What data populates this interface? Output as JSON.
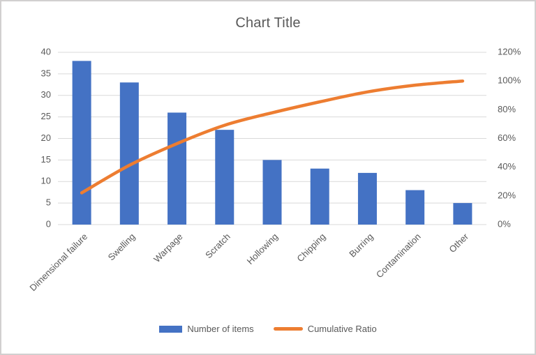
{
  "frame": {
    "background": "#ffffff",
    "border_color": "#d1cfcf",
    "text_color": "#595959"
  },
  "chart_data": {
    "type": "bar",
    "subtype": "pareto-combo",
    "title": "Chart Title",
    "categories": [
      "Dimensional failure",
      "Swelling",
      "Warpage",
      "Scratch",
      "Hollowing",
      "Chipping",
      "Burring",
      "Contamination",
      "Other"
    ],
    "series": [
      {
        "name": "Number of items",
        "type": "bar",
        "axis": "left",
        "color": "#4472C4",
        "values": [
          38,
          33,
          26,
          22,
          15,
          13,
          12,
          8,
          5
        ]
      },
      {
        "name": "Cumulative Ratio",
        "type": "line",
        "axis": "right",
        "color": "#ED7D31",
        "values_percent": [
          22.1,
          41.3,
          56.4,
          69.2,
          77.9,
          85.5,
          92.4,
          97.1,
          100
        ]
      }
    ],
    "left_axis": {
      "min": 0,
      "max": 40,
      "step": 5,
      "tick_labels": [
        "40",
        "35",
        "30",
        "25",
        "20",
        "15",
        "10",
        "5",
        "0"
      ]
    },
    "right_axis": {
      "min_percent": 0,
      "max_percent": 120,
      "step_percent": 20,
      "tick_labels": [
        "120%",
        "100%",
        "80%",
        "60%",
        "40%",
        "20%",
        "0%"
      ]
    },
    "gridlines": {
      "horizontal": true,
      "color": "#d9d9d9"
    },
    "legend_position": "bottom",
    "ylim_left": [
      0,
      40
    ],
    "ylim_right_percent": [
      0,
      120
    ]
  }
}
